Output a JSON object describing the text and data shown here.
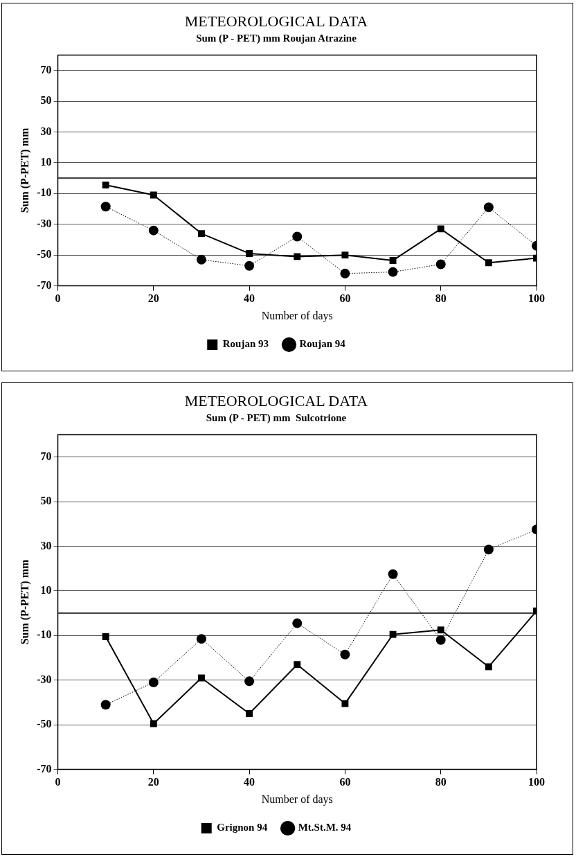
{
  "chart_data": [
    {
      "type": "line",
      "title": "METEOROLOGICAL DATA",
      "subtitle": "Sum (P - PET) mm Roujan Atrazine",
      "xlabel": "Number of days",
      "ylabel": "Sum (P-PET) mm",
      "x": [
        10,
        20,
        30,
        40,
        50,
        60,
        70,
        80,
        90,
        100
      ],
      "xlim": [
        0,
        100
      ],
      "xticks": [
        0,
        20,
        40,
        60,
        80,
        100
      ],
      "ylim": [
        -70,
        80
      ],
      "yticks": [
        -70,
        -50,
        -30,
        -10,
        10,
        30,
        50,
        70
      ],
      "grid": "y",
      "legend": "bottom",
      "ref_lines": [
        {
          "axis": "y",
          "value": 0,
          "color": "#000000",
          "line_style": "solid"
        }
      ],
      "series": [
        {
          "name": "Roujan 93",
          "color": "#000000",
          "marker": "square",
          "line_style": "solid",
          "values": [
            -4.5,
            -11,
            -36,
            -49,
            -51,
            -50,
            -53.5,
            -33,
            -55,
            -52
          ]
        },
        {
          "name": "Roujan 94",
          "color": "#000000",
          "marker": "circle",
          "line_style": "dotted",
          "values": [
            -18.5,
            -34,
            -53,
            -57,
            -38,
            -62,
            -61,
            -56,
            -19,
            -44
          ]
        }
      ]
    },
    {
      "type": "line",
      "title": "METEOROLOGICAL DATA",
      "subtitle": "Sum (P - PET) mm  Sulcotrione",
      "xlabel": "Number of days",
      "ylabel": "Sum (P-PET) mm",
      "x": [
        10,
        20,
        30,
        40,
        50,
        60,
        70,
        80,
        90,
        100
      ],
      "xlim": [
        0,
        100
      ],
      "xticks": [
        0,
        20,
        40,
        60,
        80,
        100
      ],
      "ylim": [
        -70,
        80
      ],
      "yticks": [
        -70,
        -50,
        -30,
        -10,
        10,
        30,
        50,
        70
      ],
      "grid": "y",
      "legend": "bottom",
      "ref_lines": [
        {
          "axis": "y",
          "value": 0,
          "color": "#000000",
          "line_style": "solid"
        }
      ],
      "series": [
        {
          "name": "Grignon 94",
          "color": "#000000",
          "marker": "square",
          "line_style": "solid",
          "values": [
            -10.5,
            -49.5,
            -29,
            -45,
            -23,
            -40.5,
            -9.5,
            -7.5,
            -24,
            1
          ]
        },
        {
          "name": "Mt.St.M. 94",
          "color": "#000000",
          "marker": "circle",
          "line_style": "dotted",
          "values": [
            -41,
            -31,
            -11.5,
            -30.5,
            -4.5,
            -18.5,
            17.5,
            -12,
            28.5,
            37.5
          ]
        }
      ]
    }
  ]
}
